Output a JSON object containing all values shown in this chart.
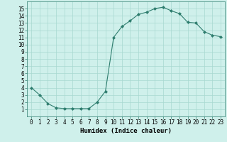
{
  "x": [
    0,
    1,
    2,
    3,
    4,
    5,
    6,
    7,
    8,
    9,
    10,
    11,
    12,
    13,
    14,
    15,
    16,
    17,
    18,
    19,
    20,
    21,
    22,
    23
  ],
  "y": [
    4.0,
    3.0,
    1.8,
    1.2,
    1.1,
    1.1,
    1.1,
    1.1,
    2.0,
    3.5,
    11.0,
    12.5,
    13.3,
    14.2,
    14.5,
    15.0,
    15.2,
    14.7,
    14.3,
    13.1,
    13.0,
    11.8,
    11.3,
    11.1
  ],
  "line_color": "#2e7d6e",
  "marker": "D",
  "marker_size": 2.0,
  "bg_color": "#cff0eb",
  "grid_color": "#a8d8d0",
  "xlabel": "Humidex (Indice chaleur)",
  "xlim": [
    -0.5,
    23.5
  ],
  "ylim": [
    0,
    16
  ],
  "xticks": [
    0,
    1,
    2,
    3,
    4,
    5,
    6,
    7,
    8,
    9,
    10,
    11,
    12,
    13,
    14,
    15,
    16,
    17,
    18,
    19,
    20,
    21,
    22,
    23
  ],
  "yticks": [
    1,
    2,
    3,
    4,
    5,
    6,
    7,
    8,
    9,
    10,
    11,
    12,
    13,
    14,
    15
  ],
  "tick_fontsize": 5.5,
  "xlabel_fontsize": 6.5
}
